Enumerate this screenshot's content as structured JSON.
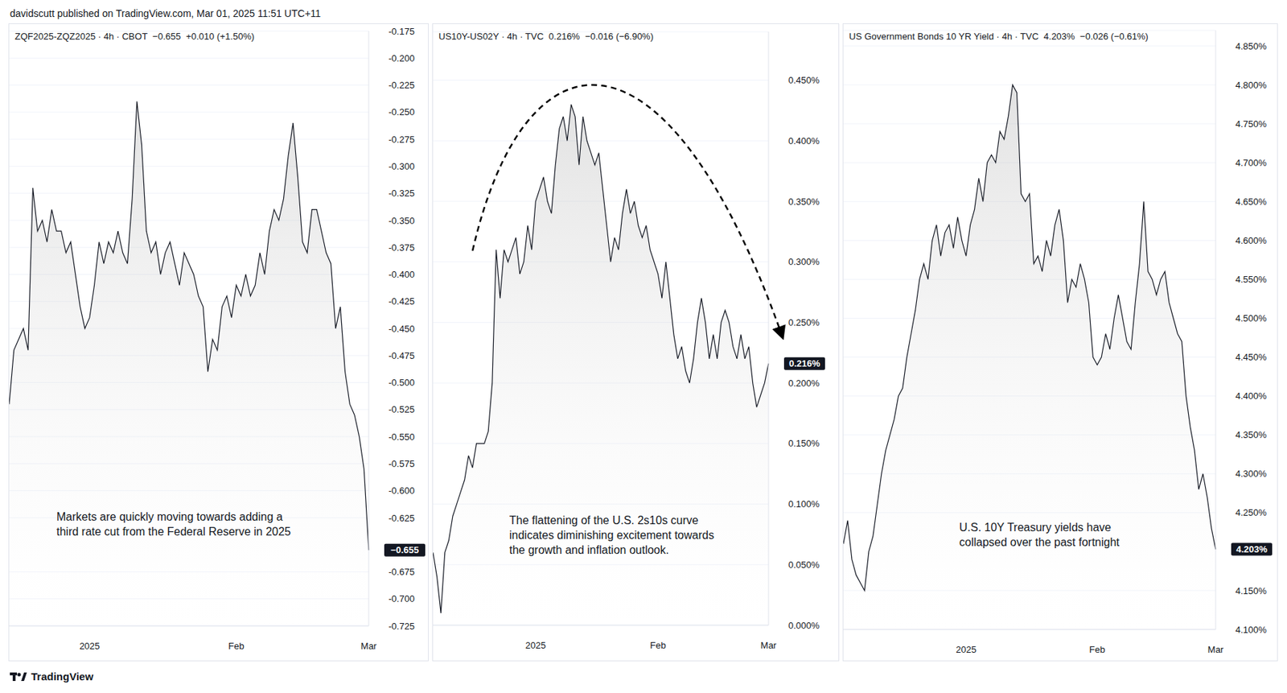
{
  "header": "davidscutt published on TradingView.com, Mar 01, 2025 11:51 UTC+11",
  "footer": "TradingView",
  "chart_data": [
    {
      "type": "area",
      "title": "ZQF2025-ZQZ2025 · 4h · CBOT  −0.655  +0.010 (+1.50%)",
      "annotation": [
        "Markets are quickly moving towards adding a",
        "third rate cut from the Federal Reserve in 2025"
      ],
      "categories": [
        null,
        null,
        null,
        null,
        null,
        null,
        null,
        null,
        null,
        null,
        null,
        null,
        null,
        null,
        null,
        null,
        null,
        "2025",
        null,
        null,
        null,
        null,
        null,
        null,
        null,
        null,
        null,
        null,
        null,
        null,
        null,
        null,
        null,
        null,
        null,
        null,
        null,
        null,
        null,
        null,
        null,
        null,
        null,
        null,
        null,
        null,
        null,
        null,
        "Feb",
        null,
        null,
        null,
        null,
        null,
        null,
        null,
        null,
        null,
        null,
        null,
        null,
        null,
        null,
        null,
        null,
        null,
        null,
        null,
        null,
        null,
        null,
        null,
        null,
        null,
        null,
        null,
        "Mar"
      ],
      "values": [
        -0.52,
        -0.47,
        -0.46,
        -0.45,
        -0.47,
        -0.32,
        -0.36,
        -0.35,
        -0.37,
        -0.34,
        -0.36,
        -0.36,
        -0.38,
        -0.37,
        -0.4,
        -0.43,
        -0.45,
        -0.44,
        -0.41,
        -0.37,
        -0.39,
        -0.37,
        -0.38,
        -0.36,
        -0.38,
        -0.39,
        -0.33,
        -0.24,
        -0.28,
        -0.36,
        -0.38,
        -0.37,
        -0.4,
        -0.38,
        -0.37,
        -0.39,
        -0.41,
        -0.38,
        -0.39,
        -0.4,
        -0.42,
        -0.43,
        -0.49,
        -0.46,
        -0.47,
        -0.43,
        -0.42,
        -0.44,
        -0.41,
        -0.42,
        -0.4,
        -0.42,
        -0.41,
        -0.38,
        -0.4,
        -0.36,
        -0.34,
        -0.35,
        -0.33,
        -0.29,
        -0.26,
        -0.31,
        -0.37,
        -0.38,
        -0.34,
        -0.34,
        -0.36,
        -0.38,
        -0.39,
        -0.45,
        -0.43,
        -0.49,
        -0.52,
        -0.53,
        -0.55,
        -0.58,
        -0.655
      ],
      "color": "#131722",
      "ylim": [
        -0.725,
        -0.175
      ],
      "yticks": [
        -0.175,
        {
          "value": -0.2,
          "label": "-0.200"
        },
        -0.225,
        {
          "value": -0.25,
          "label": "-0.250"
        },
        -0.275,
        {
          "value": -0.3,
          "label": "-0.300"
        },
        -0.325,
        {
          "value": -0.35,
          "label": "-0.350"
        },
        -0.375,
        {
          "value": -0.4,
          "label": "-0.400"
        },
        -0.425,
        {
          "value": -0.45,
          "label": "-0.450"
        },
        -0.475,
        {
          "value": -0.5,
          "label": "-0.500"
        },
        -0.525,
        {
          "value": -0.55,
          "label": "-0.550"
        },
        -0.575,
        {
          "value": -0.6,
          "label": "-0.600"
        },
        -0.625,
        -0.675,
        {
          "value": -0.7,
          "label": "-0.700"
        },
        -0.725
      ],
      "grid": true,
      "last_value": {
        "value": -0.655,
        "label": "−0.655"
      }
    },
    {
      "type": "area",
      "title": "US10Y-US02Y · 4h · TVC  0.216%  −0.016 (−6.90%)",
      "annotation": [
        "The flattening of the U.S. 2s10s curve",
        "indicates diminishing excitement towards",
        "the growth and inflation outlook."
      ],
      "categories": [
        null,
        null,
        null,
        null,
        null,
        null,
        null,
        null,
        null,
        null,
        null,
        null,
        null,
        null,
        null,
        null,
        null,
        null,
        null,
        null,
        null,
        null,
        null,
        null,
        null,
        null,
        "2025",
        null,
        null,
        null,
        null,
        null,
        null,
        null,
        null,
        null,
        null,
        null,
        null,
        null,
        null,
        null,
        null,
        null,
        null,
        null,
        null,
        null,
        null,
        null,
        null,
        null,
        null,
        null,
        null,
        null,
        null,
        "Feb",
        null,
        null,
        null,
        null,
        null,
        null,
        null,
        null,
        null,
        null,
        null,
        null,
        null,
        null,
        null,
        null,
        null,
        null,
        null,
        null,
        null,
        null,
        null,
        null,
        null,
        null,
        null,
        "Mar"
      ],
      "values": [
        0.06,
        0.04,
        0.01,
        0.06,
        0.07,
        0.09,
        0.1,
        0.11,
        0.12,
        0.14,
        0.13,
        0.15,
        0.15,
        0.15,
        0.16,
        0.2,
        0.31,
        0.27,
        0.31,
        0.3,
        0.31,
        0.32,
        0.29,
        0.3,
        0.33,
        0.31,
        0.35,
        0.36,
        0.37,
        0.35,
        0.34,
        0.38,
        0.41,
        0.42,
        0.4,
        0.43,
        0.42,
        0.38,
        0.42,
        0.4,
        0.39,
        0.38,
        0.39,
        0.36,
        0.33,
        0.3,
        0.32,
        0.31,
        0.34,
        0.36,
        0.34,
        0.35,
        0.33,
        0.32,
        0.33,
        0.31,
        0.3,
        0.29,
        0.27,
        0.3,
        0.27,
        0.24,
        0.22,
        0.23,
        0.21,
        0.2,
        0.22,
        0.25,
        0.27,
        0.25,
        0.22,
        0.24,
        0.22,
        0.25,
        0.26,
        0.25,
        0.23,
        0.22,
        0.24,
        0.22,
        0.23,
        0.2,
        0.18,
        0.19,
        0.2,
        0.216
      ],
      "color": "#131722",
      "ylim": [
        0,
        0.49
      ],
      "yticks": [
        {
          "value": 0,
          "label": "0.000%"
        },
        {
          "value": 0.05,
          "label": "0.050%"
        },
        {
          "value": 0.1,
          "label": "0.100%"
        },
        {
          "value": 0.15,
          "label": "0.150%"
        },
        {
          "value": 0.2,
          "label": "0.200%"
        },
        {
          "value": 0.25,
          "label": "0.250%"
        },
        {
          "value": 0.3,
          "label": "0.300%"
        },
        {
          "value": 0.35,
          "label": "0.350%"
        },
        {
          "value": 0.4,
          "label": "0.400%"
        },
        {
          "value": 0.45,
          "label": "0.450%"
        }
      ],
      "grid": true,
      "last_value": {
        "value": 0.216,
        "label": "0.216%"
      }
    },
    {
      "type": "area",
      "title": "US Government Bonds 10 YR Yield · 4h · TVC  4.203%  −0.026 (−0.61%)",
      "annotation": [
        "U.S. 10Y Treasury yields have",
        "collapsed over the past fortnight"
      ],
      "categories": [
        null,
        null,
        null,
        null,
        null,
        null,
        null,
        null,
        null,
        null,
        null,
        null,
        null,
        null,
        null,
        null,
        null,
        null,
        null,
        null,
        null,
        null,
        null,
        null,
        null,
        null,
        null,
        null,
        null,
        "2025",
        null,
        null,
        null,
        null,
        null,
        null,
        null,
        null,
        null,
        null,
        null,
        null,
        null,
        null,
        null,
        null,
        null,
        null,
        null,
        null,
        null,
        null,
        null,
        null,
        null,
        null,
        null,
        null,
        null,
        null,
        "Feb",
        null,
        null,
        null,
        null,
        null,
        null,
        null,
        null,
        null,
        null,
        null,
        null,
        null,
        null,
        null,
        null,
        null,
        null,
        null,
        null,
        null,
        null,
        null,
        null,
        null,
        null,
        null,
        "Mar"
      ],
      "values": [
        4.21,
        4.24,
        4.19,
        4.17,
        4.16,
        4.15,
        4.2,
        4.22,
        4.26,
        4.3,
        4.33,
        4.35,
        4.37,
        4.4,
        4.41,
        4.45,
        4.48,
        4.51,
        4.55,
        4.57,
        4.55,
        4.6,
        4.62,
        4.58,
        4.61,
        4.62,
        4.59,
        4.63,
        4.6,
        4.58,
        4.62,
        4.64,
        4.68,
        4.65,
        4.7,
        4.71,
        4.7,
        4.74,
        4.73,
        4.76,
        4.8,
        4.79,
        4.66,
        4.65,
        4.66,
        4.57,
        4.58,
        4.56,
        4.6,
        4.58,
        4.62,
        4.64,
        4.6,
        4.52,
        4.55,
        4.54,
        4.57,
        4.55,
        4.52,
        4.45,
        4.44,
        4.45,
        4.48,
        4.46,
        4.5,
        4.53,
        4.5,
        4.47,
        4.46,
        4.52,
        4.57,
        4.65,
        4.56,
        4.55,
        4.53,
        4.55,
        4.56,
        4.52,
        4.5,
        4.48,
        4.47,
        4.4,
        4.36,
        4.33,
        4.28,
        4.3,
        4.27,
        4.23,
        4.203
      ],
      "color": "#131722",
      "ylim": [
        4.1,
        4.87
      ],
      "yticks": [
        {
          "value": 4.1,
          "label": "4.100%"
        },
        {
          "value": 4.15,
          "label": "4.150%"
        },
        {
          "value": 4.25,
          "label": "4.250%"
        },
        {
          "value": 4.3,
          "label": "4.300%"
        },
        {
          "value": 4.35,
          "label": "4.350%"
        },
        {
          "value": 4.4,
          "label": "4.400%"
        },
        {
          "value": 4.45,
          "label": "4.450%"
        },
        {
          "value": 4.5,
          "label": "4.500%"
        },
        {
          "value": 4.55,
          "label": "4.550%"
        },
        {
          "value": 4.6,
          "label": "4.600%"
        },
        {
          "value": 4.65,
          "label": "4.650%"
        },
        {
          "value": 4.7,
          "label": "4.700%"
        },
        {
          "value": 4.75,
          "label": "4.750%"
        },
        {
          "value": 4.8,
          "label": "4.800%"
        },
        {
          "value": 4.85,
          "label": "4.850%"
        }
      ],
      "grid": true,
      "last_value": {
        "value": 4.203,
        "label": "4.203%"
      }
    }
  ]
}
